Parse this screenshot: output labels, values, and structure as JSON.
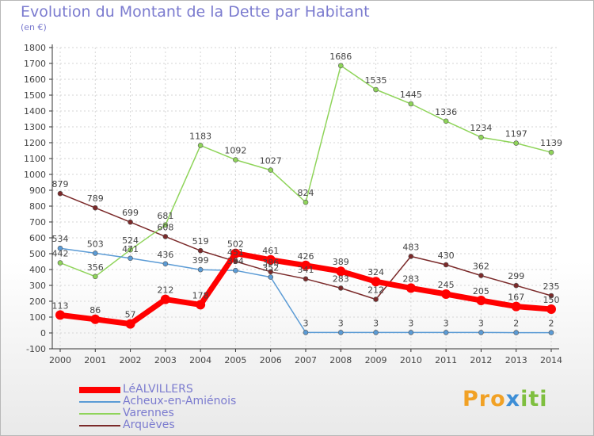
{
  "title": "Evolution du Montant de la Dette par Habitant",
  "unit": "(en €)",
  "logo": {
    "p1": "Pro",
    "p2": "x",
    "p3": "iti"
  },
  "colors": {
    "series0": "#ff0000",
    "series1": "#5b9bd5",
    "series2": "#8fd45a",
    "series3": "#7b2a2a",
    "grid": "#d6d6d6",
    "axis": "#333333",
    "label": "#444444"
  },
  "chart_data": {
    "type": "line",
    "title": "Evolution du Montant de la Dette par Habitant",
    "ylabel": "(en €)",
    "x": [
      "2000",
      "2001",
      "2002",
      "2003",
      "2004",
      "2005",
      "2006",
      "2007",
      "2008",
      "2009",
      "2010",
      "2011",
      "2012",
      "2013",
      "2014"
    ],
    "ylim": [
      -100,
      1800
    ],
    "yticks": [
      "-100",
      "0",
      "100",
      "200",
      "300",
      "400",
      "500",
      "600",
      "700",
      "800",
      "900",
      "1000",
      "1100",
      "1200",
      "1300",
      "1400",
      "1500",
      "1600",
      "1700",
      "1800"
    ],
    "grid": true,
    "legend_position": "bottom-left",
    "series": [
      {
        "name": "LéALVILLERS",
        "values": [
          113,
          86,
          57,
          212,
          178,
          502,
          461,
          426,
          389,
          324,
          283,
          245,
          205,
          167,
          150
        ],
        "labels": [
          "113",
          "86",
          "57",
          "212",
          "178",
          "502",
          "461",
          "426",
          "389",
          "324",
          "283",
          "245",
          "205",
          "167",
          "150"
        ]
      },
      {
        "name": "Acheux-en-Amiénois",
        "values": [
          534,
          503,
          471,
          436,
          399,
          394,
          352,
          3,
          3,
          3,
          3,
          3,
          3,
          2,
          2
        ],
        "labels": [
          "534",
          "503",
          "471",
          "436",
          "399",
          "394",
          "352",
          "3",
          "3",
          "3",
          "3",
          "3",
          "3",
          "2",
          "2"
        ]
      },
      {
        "name": "Varennes",
        "values": [
          442,
          356,
          524,
          681,
          1183,
          1092,
          1027,
          824,
          1686,
          1535,
          1445,
          1336,
          1234,
          1197,
          1139
        ],
        "labels": [
          "442",
          "356",
          "524",
          "681",
          "1183",
          "1092",
          "1027",
          "824",
          "1686",
          "1535",
          "1445",
          "1336",
          "1234",
          "1197",
          "1139"
        ]
      },
      {
        "name": "Arquèves",
        "values": [
          879,
          789,
          699,
          608,
          519,
          451,
          386,
          341,
          283,
          212,
          483,
          430,
          362,
          299,
          235
        ],
        "labels": [
          "879",
          "789",
          "699",
          "608",
          "519",
          "451",
          "386",
          "341",
          "283",
          "212",
          "483",
          "430",
          "362",
          "299",
          "235"
        ]
      }
    ]
  }
}
